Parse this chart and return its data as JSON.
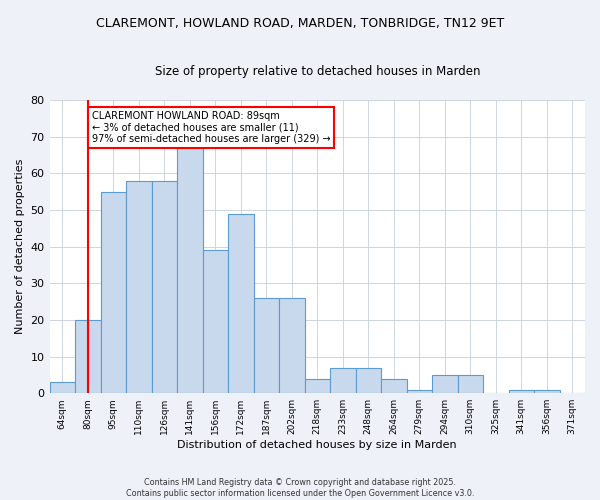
{
  "title": "CLAREMONT, HOWLAND ROAD, MARDEN, TONBRIDGE, TN12 9ET",
  "subtitle": "Size of property relative to detached houses in Marden",
  "xlabel": "Distribution of detached houses by size in Marden",
  "ylabel": "Number of detached properties",
  "bins": [
    "64sqm",
    "80sqm",
    "95sqm",
    "110sqm",
    "126sqm",
    "141sqm",
    "156sqm",
    "172sqm",
    "187sqm",
    "202sqm",
    "218sqm",
    "233sqm",
    "248sqm",
    "264sqm",
    "279sqm",
    "294sqm",
    "310sqm",
    "325sqm",
    "341sqm",
    "356sqm",
    "371sqm"
  ],
  "values": [
    3,
    20,
    55,
    58,
    58,
    69,
    39,
    49,
    26,
    26,
    4,
    7,
    7,
    4,
    1,
    5,
    5,
    0,
    1,
    1,
    0
  ],
  "bar_color": "#c9d9ed",
  "bar_edge_color": "#5b9bd5",
  "property_line_x": 1,
  "annotation_text": "CLAREMONT HOWLAND ROAD: 89sqm\n← 3% of detached houses are smaller (11)\n97% of semi-detached houses are larger (329) →",
  "annotation_box_color": "white",
  "annotation_box_edge": "red",
  "vline_color": "red",
  "ylim": [
    0,
    80
  ],
  "yticks": [
    0,
    10,
    20,
    30,
    40,
    50,
    60,
    70,
    80
  ],
  "footer_text": "Contains HM Land Registry data © Crown copyright and database right 2025.\nContains public sector information licensed under the Open Government Licence v3.0.",
  "bg_color": "#eef2f8",
  "plot_bg_color": "#ffffff",
  "grid_color": "#c8d0dc"
}
